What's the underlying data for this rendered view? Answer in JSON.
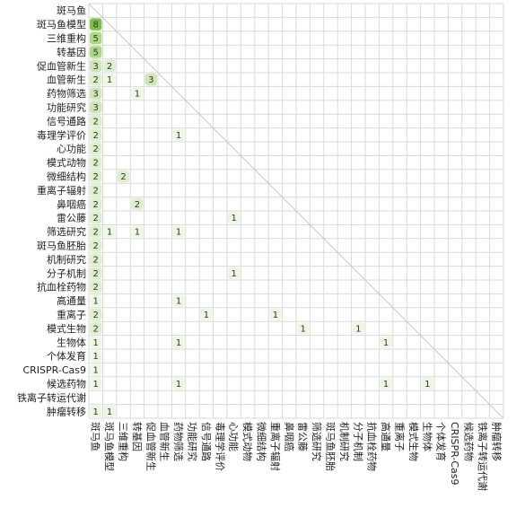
{
  "chart_data": {
    "type": "heatmap",
    "title": "",
    "xlabel": "",
    "ylabel": "",
    "labels": [
      "斑马鱼",
      "斑马鱼模型",
      "三维重构",
      "转基因",
      "促血管新生",
      "血管新生",
      "药物筛选",
      "功能研究",
      "信号通路",
      "毒理学评价",
      "心功能",
      "模式动物",
      "微细结构",
      "重离子辐射",
      "鼻咽癌",
      "雷公藤",
      "筛选研究",
      "斑马鱼胚胎",
      "机制研究",
      "分子机制",
      "抗血栓药物",
      "高通量",
      "重离子",
      "模式生物",
      "生物体",
      "个体发育",
      "CRISPR-Cas9",
      "候选药物",
      "铁离子转运代谢",
      "肿瘤转移"
    ],
    "cells": [
      {
        "row": "斑马鱼模型",
        "col": "斑马鱼",
        "value": 8
      },
      {
        "row": "三维重构",
        "col": "斑马鱼",
        "value": 5
      },
      {
        "row": "转基因",
        "col": "斑马鱼",
        "value": 5
      },
      {
        "row": "促血管新生",
        "col": "斑马鱼",
        "value": 3
      },
      {
        "row": "促血管新生",
        "col": "斑马鱼模型",
        "value": 2
      },
      {
        "row": "血管新生",
        "col": "斑马鱼",
        "value": 2
      },
      {
        "row": "血管新生",
        "col": "斑马鱼模型",
        "value": 1
      },
      {
        "row": "血管新生",
        "col": "促血管新生",
        "value": 3
      },
      {
        "row": "药物筛选",
        "col": "斑马鱼",
        "value": 3
      },
      {
        "row": "药物筛选",
        "col": "转基因",
        "value": 1
      },
      {
        "row": "功能研究",
        "col": "斑马鱼",
        "value": 3
      },
      {
        "row": "信号通路",
        "col": "斑马鱼",
        "value": 2
      },
      {
        "row": "毒理学评价",
        "col": "斑马鱼",
        "value": 2
      },
      {
        "row": "毒理学评价",
        "col": "药物筛选",
        "value": 1
      },
      {
        "row": "心功能",
        "col": "斑马鱼",
        "value": 2
      },
      {
        "row": "模式动物",
        "col": "斑马鱼",
        "value": 2
      },
      {
        "row": "微细结构",
        "col": "斑马鱼",
        "value": 2
      },
      {
        "row": "微细结构",
        "col": "三维重构",
        "value": 2
      },
      {
        "row": "重离子辐射",
        "col": "斑马鱼",
        "value": 2
      },
      {
        "row": "鼻咽癌",
        "col": "斑马鱼",
        "value": 2
      },
      {
        "row": "鼻咽癌",
        "col": "转基因",
        "value": 2
      },
      {
        "row": "雷公藤",
        "col": "斑马鱼",
        "value": 2
      },
      {
        "row": "雷公藤",
        "col": "心功能",
        "value": 1
      },
      {
        "row": "筛选研究",
        "col": "斑马鱼",
        "value": 2
      },
      {
        "row": "筛选研究",
        "col": "斑马鱼模型",
        "value": 1
      },
      {
        "row": "筛选研究",
        "col": "转基因",
        "value": 1
      },
      {
        "row": "筛选研究",
        "col": "药物筛选",
        "value": 1
      },
      {
        "row": "斑马鱼胚胎",
        "col": "斑马鱼",
        "value": 2
      },
      {
        "row": "机制研究",
        "col": "斑马鱼",
        "value": 2
      },
      {
        "row": "分子机制",
        "col": "斑马鱼",
        "value": 2
      },
      {
        "row": "分子机制",
        "col": "心功能",
        "value": 1
      },
      {
        "row": "抗血栓药物",
        "col": "斑马鱼",
        "value": 2
      },
      {
        "row": "高通量",
        "col": "斑马鱼",
        "value": 1
      },
      {
        "row": "高通量",
        "col": "药物筛选",
        "value": 1
      },
      {
        "row": "重离子",
        "col": "斑马鱼",
        "value": 2
      },
      {
        "row": "重离子",
        "col": "信号通路",
        "value": 1
      },
      {
        "row": "重离子",
        "col": "重离子辐射",
        "value": 1
      },
      {
        "row": "模式生物",
        "col": "斑马鱼",
        "value": 2
      },
      {
        "row": "模式生物",
        "col": "雷公藤",
        "value": 1
      },
      {
        "row": "模式生物",
        "col": "分子机制",
        "value": 1
      },
      {
        "row": "生物体",
        "col": "斑马鱼",
        "value": 1
      },
      {
        "row": "生物体",
        "col": "药物筛选",
        "value": 1
      },
      {
        "row": "生物体",
        "col": "高通量",
        "value": 1
      },
      {
        "row": "个体发育",
        "col": "斑马鱼",
        "value": 1
      },
      {
        "row": "CRISPR-Cas9",
        "col": "斑马鱼",
        "value": 1
      },
      {
        "row": "候选药物",
        "col": "斑马鱼",
        "value": 1
      },
      {
        "row": "候选药物",
        "col": "药物筛选",
        "value": 1
      },
      {
        "row": "候选药物",
        "col": "高通量",
        "value": 1
      },
      {
        "row": "候选药物",
        "col": "生物体",
        "value": 1
      },
      {
        "row": "肿瘤转移",
        "col": "斑马鱼",
        "value": 1
      },
      {
        "row": "肿瘤转移",
        "col": "斑马鱼模型",
        "value": 1
      }
    ],
    "colors": {
      "cell_fill_min": "#eef7e4",
      "cell_fill_max": "#7cc242",
      "grid": "#dadada",
      "diagonal": "#c9c9c9",
      "text": "#222222"
    }
  }
}
